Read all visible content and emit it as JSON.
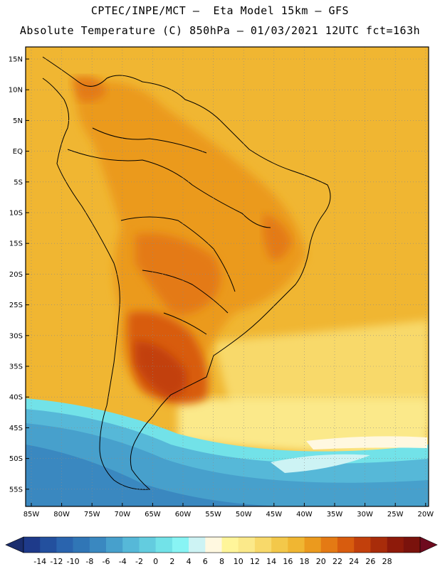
{
  "header": {
    "line1": "CPTEC/INPE/MCT –  Eta Model 15km – GFS",
    "line2": "Absolute Temperature (C) 850hPa – 01/03/2021 12UTC fct=163h"
  },
  "map": {
    "lat_labels": [
      "15N",
      "10N",
      "5N",
      "EQ",
      "5S",
      "10S",
      "15S",
      "20S",
      "25S",
      "30S",
      "35S",
      "40S",
      "45S",
      "50S",
      "55S"
    ],
    "lon_labels": [
      "85W",
      "80W",
      "75W",
      "70W",
      "65W",
      "60W",
      "55W",
      "50W",
      "45W",
      "40W",
      "35W",
      "30W",
      "25W",
      "20W"
    ]
  },
  "colorbar": {
    "ticks": [
      "-14",
      "-12",
      "-10",
      "-8",
      "-6",
      "-4",
      "-2",
      "0",
      "2",
      "4",
      "6",
      "8",
      "10",
      "12",
      "14",
      "16",
      "18",
      "20",
      "22",
      "24",
      "26",
      "28"
    ],
    "colors": [
      "#1e3a8a",
      "#23509e",
      "#2a64ae",
      "#3076b6",
      "#3a88c0",
      "#47a0cc",
      "#56b8d8",
      "#63ccdf",
      "#72e2e8",
      "#88f4f4",
      "#cdf3f4",
      "#fff8e0",
      "#fff59a",
      "#fbe98a",
      "#f8d96a",
      "#f3c84a",
      "#f0b632",
      "#eb9a1e",
      "#e47a14",
      "#d85c0e",
      "#c2400c",
      "#a82c0a",
      "#8e1a0a",
      "#7a120c"
    ],
    "low_arrow_color": "#1a2d6e",
    "high_arrow_color": "#6e0a1e"
  }
}
